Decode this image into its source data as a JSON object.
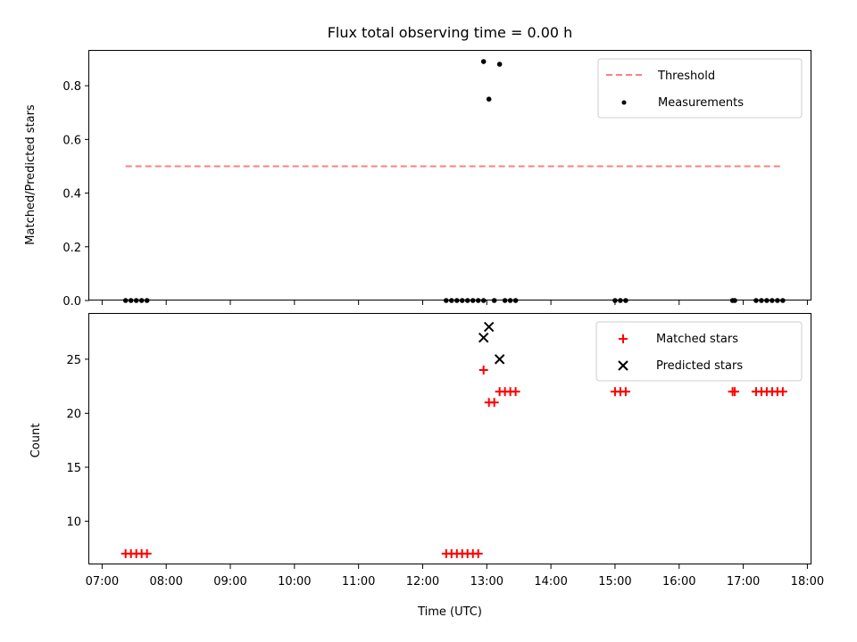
{
  "chart_data": {
    "title": "Flux total observing time = 0.00 h",
    "subplots": [
      {
        "type": "scatter",
        "ylabel": "Matched/Predicted stars",
        "ylim": [
          0.0,
          0.93
        ],
        "yticks": [
          0.0,
          0.2,
          0.4,
          0.6,
          0.8
        ],
        "ytick_labels": [
          "0.0",
          "0.2",
          "0.4",
          "0.6",
          "0.8"
        ],
        "legend": {
          "placement": "upper right",
          "entries": [
            "Threshold",
            "Measurements"
          ]
        },
        "series": [
          {
            "name": "Threshold",
            "kind": "dashed-line",
            "color": "#ff7f7f",
            "x": [
              "07:22",
              "17:37"
            ],
            "y": [
              0.5,
              0.5
            ]
          },
          {
            "name": "Measurements",
            "kind": "dot",
            "color": "#000000",
            "points": [
              [
                "07:22",
                0.0
              ],
              [
                "07:27",
                0.0
              ],
              [
                "07:32",
                0.0
              ],
              [
                "07:37",
                0.0
              ],
              [
                "07:42",
                0.0
              ],
              [
                "12:22",
                0.0
              ],
              [
                "12:27",
                0.0
              ],
              [
                "12:32",
                0.0
              ],
              [
                "12:37",
                0.0
              ],
              [
                "12:42",
                0.0
              ],
              [
                "12:47",
                0.0
              ],
              [
                "12:52",
                0.0
              ],
              [
                "12:57",
                0.0
              ],
              [
                "12:57",
                0.89
              ],
              [
                "13:02",
                0.75
              ],
              [
                "13:12",
                0.88
              ],
              [
                "13:07",
                0.0
              ],
              [
                "13:17",
                0.0
              ],
              [
                "13:22",
                0.0
              ],
              [
                "13:27",
                0.0
              ],
              [
                "15:00",
                0.0
              ],
              [
                "15:05",
                0.0
              ],
              [
                "15:10",
                0.0
              ],
              [
                "16:50",
                0.0
              ],
              [
                "16:52",
                0.0
              ],
              [
                "17:12",
                0.0
              ],
              [
                "17:17",
                0.0
              ],
              [
                "17:22",
                0.0
              ],
              [
                "17:27",
                0.0
              ],
              [
                "17:32",
                0.0
              ],
              [
                "17:37",
                0.0
              ]
            ]
          }
        ]
      },
      {
        "type": "scatter",
        "ylabel": "Count",
        "xlabel": "Time (UTC)",
        "ylim": [
          6.0,
          29.2
        ],
        "yticks": [
          10,
          15,
          20,
          25
        ],
        "ytick_labels": [
          "10",
          "15",
          "20",
          "25"
        ],
        "legend": {
          "placement": "upper right",
          "entries": [
            "Matched stars",
            "Predicted stars"
          ]
        },
        "series": [
          {
            "name": "Matched stars",
            "kind": "plus",
            "color": "#ff0000",
            "points": [
              [
                "07:22",
                7
              ],
              [
                "07:27",
                7
              ],
              [
                "07:32",
                7
              ],
              [
                "07:37",
                7
              ],
              [
                "07:42",
                7
              ],
              [
                "12:22",
                7
              ],
              [
                "12:27",
                7
              ],
              [
                "12:32",
                7
              ],
              [
                "12:37",
                7
              ],
              [
                "12:42",
                7
              ],
              [
                "12:47",
                7
              ],
              [
                "12:52",
                7
              ],
              [
                "12:57",
                24
              ],
              [
                "13:02",
                21
              ],
              [
                "13:07",
                21
              ],
              [
                "13:12",
                22
              ],
              [
                "13:17",
                22
              ],
              [
                "13:22",
                22
              ],
              [
                "13:27",
                22
              ],
              [
                "15:00",
                22
              ],
              [
                "15:05",
                22
              ],
              [
                "15:10",
                22
              ],
              [
                "16:50",
                22
              ],
              [
                "16:52",
                22
              ],
              [
                "17:12",
                22
              ],
              [
                "17:17",
                22
              ],
              [
                "17:22",
                22
              ],
              [
                "17:27",
                22
              ],
              [
                "17:32",
                22
              ],
              [
                "17:37",
                22
              ]
            ]
          },
          {
            "name": "Predicted stars",
            "kind": "x",
            "color": "#000000",
            "points": [
              [
                "12:57",
                27
              ],
              [
                "13:02",
                28
              ],
              [
                "13:12",
                25
              ]
            ]
          }
        ]
      }
    ],
    "x_axis": {
      "label": "Time (UTC)",
      "range": [
        "06:48",
        "18:03"
      ],
      "ticks": [
        "07:00",
        "08:00",
        "09:00",
        "10:00",
        "11:00",
        "12:00",
        "13:00",
        "14:00",
        "15:00",
        "16:00",
        "17:00",
        "18:00"
      ]
    },
    "grid": false
  }
}
